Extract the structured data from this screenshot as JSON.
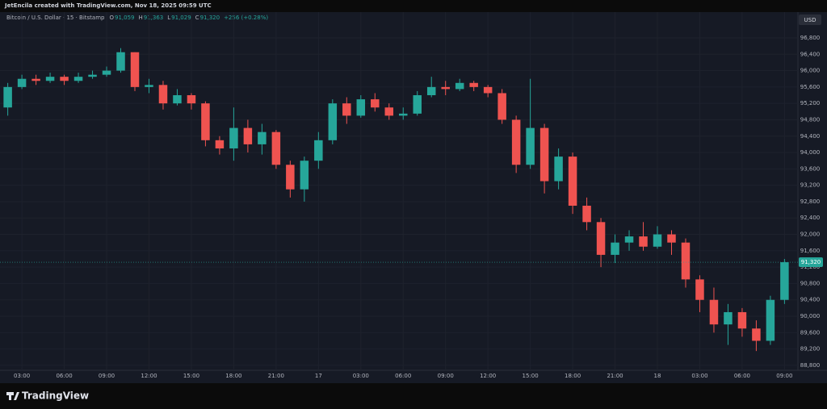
{
  "header": {
    "credit": "JetEncila created with TradingView.com, Nov 18, 2025 09:59 UTC",
    "symbol": "Bitcoin / U.S. Dollar · 15 · Bitstamp",
    "ohlc": [
      {
        "key": "O",
        "value": "91,059"
      },
      {
        "key": "H",
        "value": "91,363"
      },
      {
        "key": "L",
        "value": "91,029"
      },
      {
        "key": "C",
        "value": "91,320"
      }
    ],
    "change": "+256 (+0.28%)"
  },
  "chart_data": {
    "type": "candlestick",
    "currency": "USD",
    "grid": true,
    "up_color": "#26a69a",
    "down_color": "#ef5350",
    "x": [
      2,
      3,
      4,
      5,
      6,
      7,
      8,
      9,
      10,
      11,
      12,
      13,
      14,
      15,
      16,
      17,
      18,
      19,
      20,
      21,
      22,
      23,
      24,
      25,
      26,
      27,
      28,
      29,
      30,
      31,
      32,
      33,
      34,
      35,
      36,
      37,
      38,
      39,
      40,
      41,
      42,
      43,
      44,
      45,
      46,
      47,
      48,
      49,
      50,
      51,
      52,
      53,
      54,
      55,
      56,
      57
    ],
    "open": [
      95100,
      95600,
      95800,
      95750,
      95850,
      95750,
      95850,
      95900,
      96000,
      96450,
      95600,
      95650,
      95200,
      95400,
      95200,
      94300,
      94100,
      94600,
      94200,
      94500,
      93700,
      93100,
      93800,
      94300,
      95200,
      94900,
      95300,
      95100,
      94900,
      94950,
      95400,
      95600,
      95550,
      95700,
      95600,
      95450,
      94800,
      93700,
      94600,
      93300,
      93900,
      92700,
      92300,
      91500,
      91800,
      91950,
      91700,
      92000,
      91800,
      90900,
      90400,
      89800,
      90100,
      89700,
      89400,
      90400
    ],
    "high": [
      95700,
      95900,
      95900,
      95950,
      95900,
      95950,
      96000,
      96100,
      96550,
      96450,
      95800,
      95750,
      95550,
      95450,
      95250,
      94400,
      95100,
      94800,
      94700,
      94550,
      93800,
      93900,
      94500,
      95300,
      95350,
      95400,
      95450,
      95200,
      95100,
      95500,
      95850,
      95750,
      95800,
      95750,
      95650,
      95550,
      94900,
      95800,
      94700,
      94100,
      94000,
      92900,
      92400,
      92000,
      92100,
      92300,
      92200,
      92100,
      91900,
      91000,
      90700,
      90300,
      90200,
      89900,
      90500,
      91400
    ],
    "low": [
      94900,
      95550,
      95650,
      95700,
      95650,
      95700,
      95800,
      95850,
      95950,
      95500,
      95450,
      95050,
      95150,
      95050,
      94150,
      93950,
      93800,
      94000,
      93950,
      93600,
      92900,
      92800,
      93600,
      94200,
      94700,
      94850,
      95000,
      94800,
      94800,
      94900,
      95350,
      95400,
      95500,
      95500,
      95350,
      94700,
      93500,
      93600,
      93000,
      93100,
      92500,
      92100,
      91200,
      91300,
      91600,
      91600,
      91650,
      91500,
      90700,
      90100,
      89600,
      89300,
      89500,
      89150,
      89300,
      90300
    ],
    "close": [
      95600,
      95800,
      95750,
      95850,
      95750,
      95850,
      95900,
      96000,
      96450,
      95600,
      95650,
      95200,
      95400,
      95200,
      94300,
      94100,
      94600,
      94200,
      94500,
      93700,
      93100,
      93800,
      94300,
      95200,
      94900,
      95300,
      95100,
      94900,
      94950,
      95400,
      95600,
      95550,
      95700,
      95600,
      95450,
      94800,
      93700,
      94600,
      93300,
      93900,
      92700,
      92300,
      91500,
      91800,
      91950,
      91700,
      92000,
      91800,
      90900,
      90400,
      89800,
      90100,
      89700,
      89400,
      90400,
      91320
    ],
    "last_price": {
      "value": 91320,
      "label": "91,320"
    },
    "xlim": [
      1.45,
      57.95
    ],
    "xticks": [
      {
        "value": 3,
        "label": "03:00"
      },
      {
        "value": 6,
        "label": "06:00"
      },
      {
        "value": 9,
        "label": "09:00"
      },
      {
        "value": 12,
        "label": "12:00"
      },
      {
        "value": 15,
        "label": "15:00"
      },
      {
        "value": 18,
        "label": "18:00"
      },
      {
        "value": 21,
        "label": "21:00"
      },
      {
        "value": 24,
        "label": "17"
      },
      {
        "value": 27,
        "label": "03:00"
      },
      {
        "value": 30,
        "label": "06:00"
      },
      {
        "value": 33,
        "label": "09:00"
      },
      {
        "value": 36,
        "label": "12:00"
      },
      {
        "value": 39,
        "label": "15:00"
      },
      {
        "value": 42,
        "label": "18:00"
      },
      {
        "value": 45,
        "label": "21:00"
      },
      {
        "value": 48,
        "label": "18"
      },
      {
        "value": 51,
        "label": "03:00"
      },
      {
        "value": 54,
        "label": "06:00"
      },
      {
        "value": 57,
        "label": "09:00"
      }
    ],
    "ylim": [
      88680,
      97430
    ],
    "yticks": [
      {
        "value": 88800,
        "label": "88,800"
      },
      {
        "value": 89200,
        "label": "89,200"
      },
      {
        "value": 89600,
        "label": "89,600"
      },
      {
        "value": 90000,
        "label": "90,000"
      },
      {
        "value": 90400,
        "label": "90,400"
      },
      {
        "value": 90800,
        "label": "90,800"
      },
      {
        "value": 91200,
        "label": "91,200"
      },
      {
        "value": 91600,
        "label": "91,600"
      },
      {
        "value": 92000,
        "label": "92,000"
      },
      {
        "value": 92400,
        "label": "92,400"
      },
      {
        "value": 92800,
        "label": "92,800"
      },
      {
        "value": 93200,
        "label": "93,200"
      },
      {
        "value": 93600,
        "label": "93,600"
      },
      {
        "value": 94000,
        "label": "94,000"
      },
      {
        "value": 94400,
        "label": "94,400"
      },
      {
        "value": 94800,
        "label": "94,800"
      },
      {
        "value": 95200,
        "label": "95,200"
      },
      {
        "value": 95600,
        "label": "95,600"
      },
      {
        "value": 96000,
        "label": "96,000"
      },
      {
        "value": 96400,
        "label": "96,400"
      },
      {
        "value": 96800,
        "label": "96,800"
      }
    ]
  },
  "footer": {
    "brand": "TradingView"
  }
}
